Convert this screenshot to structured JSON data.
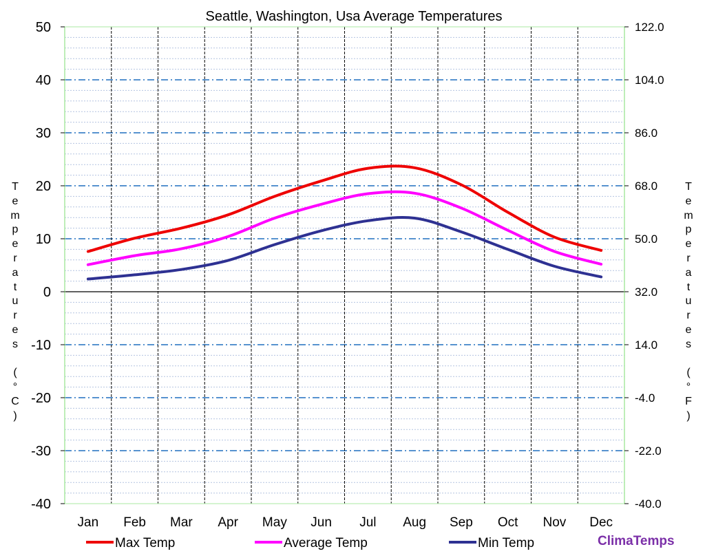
{
  "chart_data": {
    "type": "line",
    "title": "Seattle, Washington, Usa Average Temperatures",
    "categories": [
      "Jan",
      "Feb",
      "Mar",
      "Apr",
      "May",
      "Jun",
      "Jul",
      "Aug",
      "Sep",
      "Oct",
      "Nov",
      "Dec"
    ],
    "series": [
      {
        "name": "Max Temp",
        "color": "#ee0000",
        "values": [
          7.6,
          10.1,
          12.0,
          14.5,
          18.0,
          20.9,
          23.3,
          23.4,
          20.2,
          15.0,
          10.3,
          7.8
        ]
      },
      {
        "name": "Average Temp",
        "color": "#ff00ff",
        "values": [
          5.1,
          6.8,
          8.1,
          10.4,
          13.9,
          16.5,
          18.5,
          18.6,
          15.8,
          11.6,
          7.6,
          5.2
        ]
      },
      {
        "name": "Min Temp",
        "color": "#2e3192",
        "values": [
          2.4,
          3.2,
          4.2,
          5.9,
          8.9,
          11.5,
          13.4,
          13.9,
          11.3,
          8.0,
          4.8,
          2.8
        ]
      }
    ],
    "ylabel_left": "Temperatures (°C)",
    "ylabel_right": "Temperatures (°F)",
    "ylim": [
      -40,
      50
    ],
    "yticks_left": [
      "50",
      "40",
      "30",
      "20",
      "10",
      "0",
      "-10",
      "-20",
      "-30",
      "-40"
    ],
    "yticks_right": [
      "122.0",
      "104.0",
      "86.0",
      "68.0",
      "50.0",
      "32.0",
      "14.0",
      "-4.0",
      "-22.0",
      "-40.0"
    ],
    "grid": true,
    "legend_position": "bottom"
  },
  "brand": "ClimaTemps"
}
